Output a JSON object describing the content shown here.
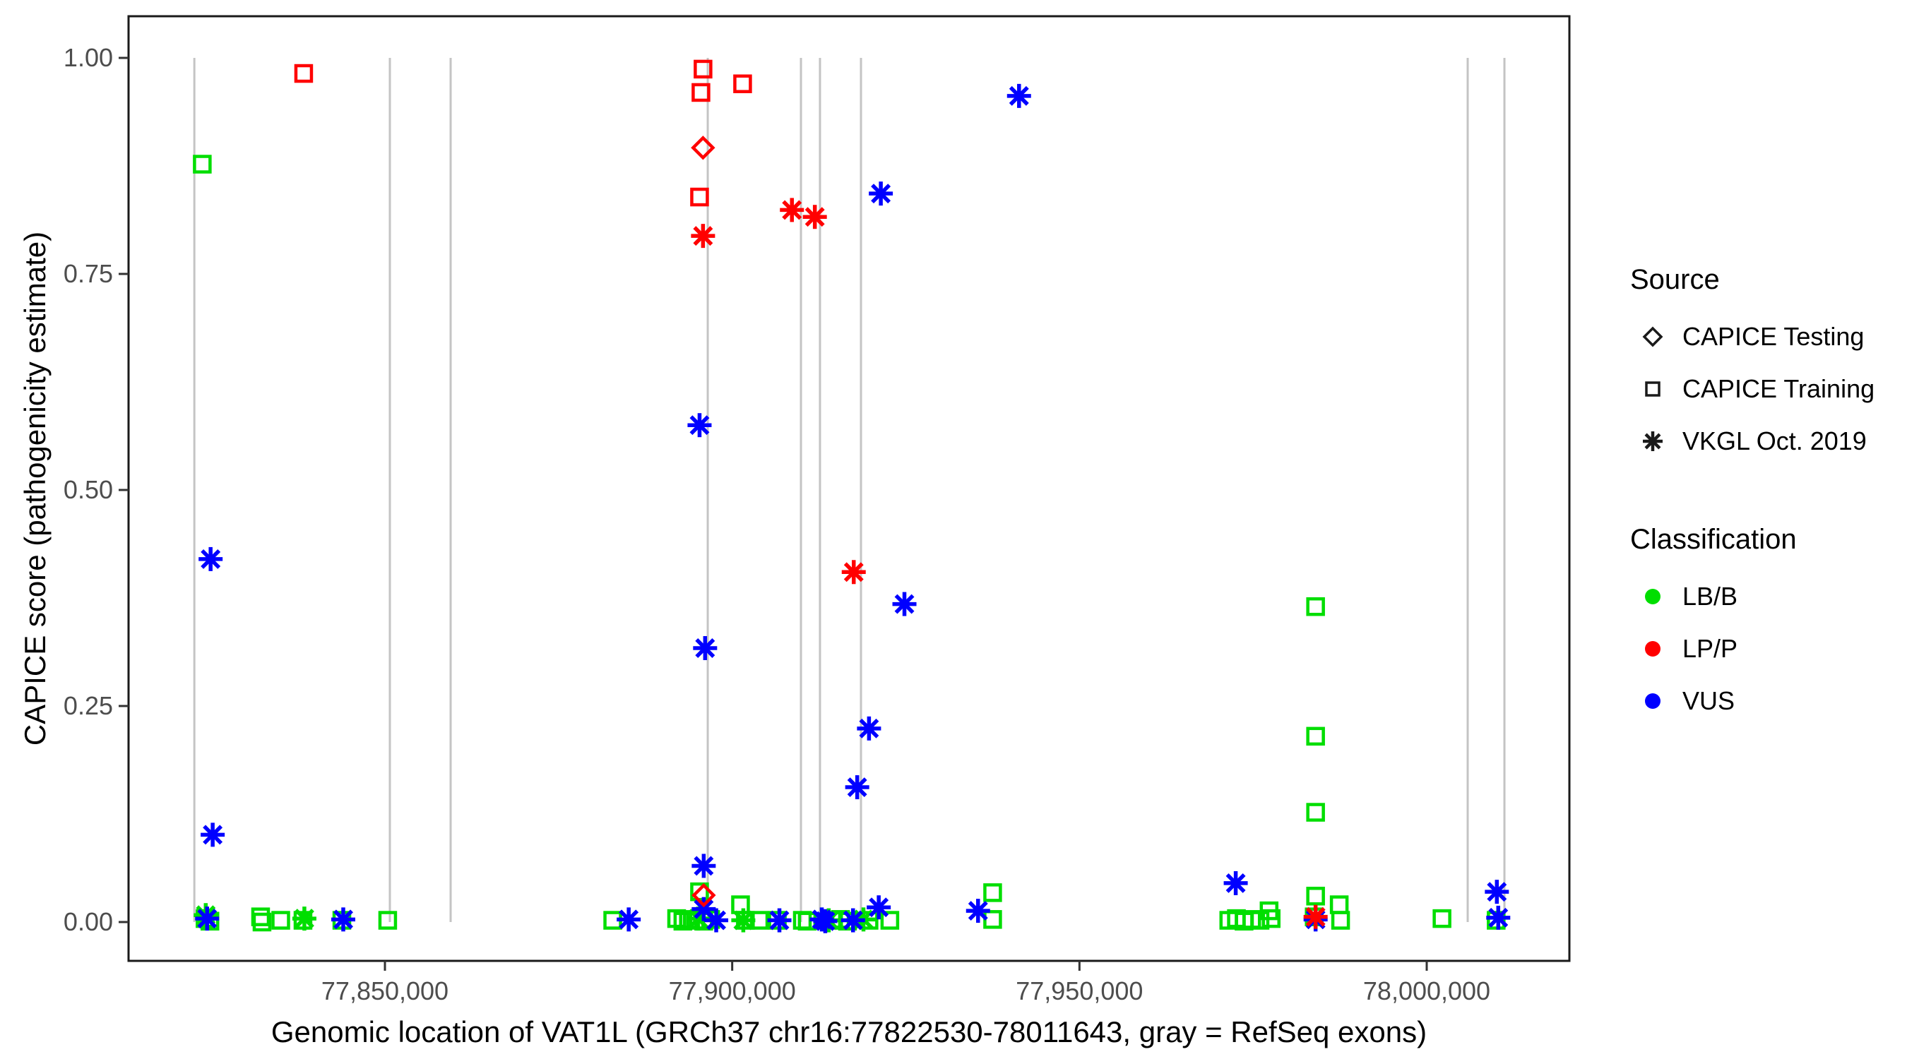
{
  "figure": {
    "background": "#FFFFFF",
    "panel_border_color": "#1A1A1A",
    "exon_line_color": "#C4C4C4",
    "tick_color": "#333333",
    "tick_label_color": "#4D4D4D"
  },
  "axes": {
    "x_title": "Genomic location of VAT1L (GRCh37 chr16:77822530-78011643, gray = RefSeq exons)",
    "y_title": "CAPICE score (pathogenicity estimate)",
    "x_ticks": [
      {
        "value": 77850000,
        "label": "77,850,000"
      },
      {
        "value": 77900000,
        "label": "77,900,000"
      },
      {
        "value": 77950000,
        "label": "77,950,000"
      },
      {
        "value": 78000000,
        "label": "78,000,000"
      }
    ],
    "y_ticks": [
      {
        "value": 0.0,
        "label": "0.00"
      },
      {
        "value": 0.25,
        "label": "0.25"
      },
      {
        "value": 0.5,
        "label": "0.50"
      },
      {
        "value": 0.75,
        "label": "0.75"
      },
      {
        "value": 1.0,
        "label": "1.00"
      }
    ]
  },
  "legend": {
    "source": {
      "title": "Source",
      "items": [
        {
          "label": "CAPICE Testing",
          "shape": "diamond"
        },
        {
          "label": "CAPICE Training",
          "shape": "square"
        },
        {
          "label": "VKGL Oct. 2019",
          "shape": "asterisk"
        }
      ]
    },
    "classification": {
      "title": "Classification",
      "items": [
        {
          "label": "LB/B",
          "color": "#00DE00"
        },
        {
          "label": "LP/P",
          "color": "#FF0000"
        },
        {
          "label": "VUS",
          "color": "#0000FF"
        }
      ]
    }
  },
  "chart_data": {
    "type": "scatter",
    "title": "",
    "xlabel": "Genomic location of VAT1L (GRCh37 chr16:77822530-78011643, gray = RefSeq exons)",
    "ylabel": "CAPICE score (pathogenicity estimate)",
    "xlim": [
      77813000,
      78020500
    ],
    "ylim": [
      -0.045,
      1.045
    ],
    "grid": false,
    "legend_position": "right",
    "exon_lines": [
      77822560,
      77850710,
      77859460,
      77896480,
      77909900,
      77912640,
      77918540,
      78005900,
      78011190
    ],
    "series": [
      {
        "name": "CAPICE Training / LB/B",
        "source": "CAPICE Training",
        "classification": "LB/B",
        "shape": "square",
        "color": "#00DE00",
        "points": [
          [
            77823700,
            0.877
          ],
          [
            77824100,
            0.004
          ],
          [
            77824800,
            0.001
          ],
          [
            77832100,
            0.006
          ],
          [
            77832300,
            0.0
          ],
          [
            77835000,
            0.002
          ],
          [
            77838200,
            0.002
          ],
          [
            77843800,
            0.002
          ],
          [
            77850400,
            0.002
          ],
          [
            77882800,
            0.002
          ],
          [
            77892000,
            0.004
          ],
          [
            77892900,
            0.001
          ],
          [
            77893700,
            0.003
          ],
          [
            77894700,
            0.002
          ],
          [
            77895300,
            0.035
          ],
          [
            77895900,
            0.001
          ],
          [
            77896900,
            0.003
          ],
          [
            77901200,
            0.02
          ],
          [
            77901900,
            0.002
          ],
          [
            77903900,
            0.002
          ],
          [
            77906500,
            0.002
          ],
          [
            77910100,
            0.002
          ],
          [
            77910800,
            0.001
          ],
          [
            77914600,
            0.002
          ],
          [
            77915600,
            0.003
          ],
          [
            77916600,
            0.001
          ],
          [
            77919700,
            0.002
          ],
          [
            77922700,
            0.002
          ],
          [
            77937500,
            0.034
          ],
          [
            77937500,
            0.003
          ],
          [
            77971500,
            0.002
          ],
          [
            77972600,
            0.004
          ],
          [
            77973700,
            0.001
          ],
          [
            77974800,
            0.003
          ],
          [
            77976000,
            0.002
          ],
          [
            77977600,
            0.004
          ],
          [
            77977300,
            0.013
          ],
          [
            77983800,
            0.006
          ],
          [
            77984000,
            0.365
          ],
          [
            77984000,
            0.215
          ],
          [
            77984000,
            0.127
          ],
          [
            77984000,
            0.03
          ],
          [
            77987400,
            0.02
          ],
          [
            77987600,
            0.002
          ],
          [
            78002200,
            0.004
          ],
          [
            78010000,
            0.002
          ]
        ]
      },
      {
        "name": "CAPICE Training / LP/P",
        "source": "CAPICE Training",
        "classification": "LP/P",
        "shape": "square",
        "color": "#FF0000",
        "points": [
          [
            77838300,
            0.982
          ],
          [
            77895800,
            0.987
          ],
          [
            77895500,
            0.96
          ],
          [
            77901500,
            0.97
          ],
          [
            77895300,
            0.839
          ]
        ]
      },
      {
        "name": "VKGL Oct. 2019 / LB/B",
        "source": "VKGL Oct. 2019",
        "classification": "LB/B",
        "shape": "asterisk",
        "color": "#00DE00",
        "points": [
          [
            77824200,
            0.008
          ],
          [
            77838400,
            0.004
          ],
          [
            77895100,
            0.004
          ],
          [
            77901600,
            0.002
          ],
          [
            77913900,
            0.002
          ],
          [
            77918900,
            0.003
          ]
        ]
      },
      {
        "name": "VKGL Oct. 2019 / VUS",
        "source": "VKGL Oct. 2019",
        "classification": "VUS",
        "shape": "asterisk",
        "color": "#0000FF",
        "points": [
          [
            77824900,
            0.42
          ],
          [
            77825200,
            0.101
          ],
          [
            77824400,
            0.004
          ],
          [
            77844000,
            0.003
          ],
          [
            77885100,
            0.003
          ],
          [
            77895300,
            0.575
          ],
          [
            77896100,
            0.317
          ],
          [
            77895900,
            0.065
          ],
          [
            77895900,
            0.015
          ],
          [
            77897700,
            0.002
          ],
          [
            77906800,
            0.002
          ],
          [
            77912900,
            0.003
          ],
          [
            77913400,
            0.001
          ],
          [
            77917400,
            0.002
          ],
          [
            77918000,
            0.156
          ],
          [
            77919700,
            0.224
          ],
          [
            77921100,
            0.017
          ],
          [
            77921400,
            0.843
          ],
          [
            77924800,
            0.368
          ],
          [
            77935400,
            0.013
          ],
          [
            77941300,
            0.956
          ],
          [
            77972500,
            0.045
          ],
          [
            77984000,
            0.003
          ],
          [
            78010100,
            0.035
          ],
          [
            78010300,
            0.005
          ]
        ]
      },
      {
        "name": "VKGL Oct. 2019 / LP/P",
        "source": "VKGL Oct. 2019",
        "classification": "LP/P",
        "shape": "asterisk",
        "color": "#FF0000",
        "points": [
          [
            77895800,
            0.794
          ],
          [
            77908600,
            0.824
          ],
          [
            77911900,
            0.816
          ],
          [
            77917500,
            0.405
          ],
          [
            77984000,
            0.006
          ]
        ]
      },
      {
        "name": "CAPICE Testing / LP/P",
        "source": "CAPICE Testing",
        "classification": "LP/P",
        "shape": "diamond",
        "color": "#FF0000",
        "points": [
          [
            77895800,
            0.896
          ],
          [
            77895900,
            0.031
          ]
        ]
      }
    ]
  }
}
